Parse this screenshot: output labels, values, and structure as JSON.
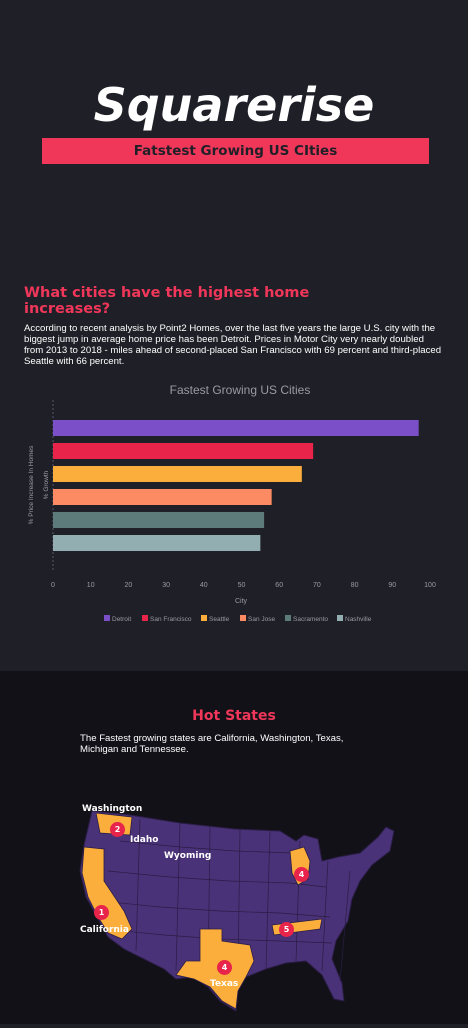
{
  "header": {
    "title": "Squarerise",
    "subtitle": "Fatstest Growing US CIties"
  },
  "intro": {
    "heading": "What cities have the highest home increases?",
    "body": "According to recent analysis by Point2 Homes, over the last five years the large U.S. city with the biggest jump in average home price has been Detroit. Prices in Motor City very nearly doubled from 2013 to 2018 - miles ahead of second-placed San Francisco with 69 percent and third-placed Seattle with 66 percent."
  },
  "chart_data": {
    "type": "bar",
    "orientation": "horizontal",
    "title": "Fastest Growing US Cities",
    "xlabel": "City",
    "ylabel": "% Price Increase In Homes",
    "ylabel_inner": "% Growth",
    "xlim": [
      0,
      100
    ],
    "xticks": [
      "0",
      "10",
      "20",
      "30",
      "40",
      "50",
      "60",
      "70",
      "80",
      "90",
      "100"
    ],
    "legend_position": "bottom",
    "categories": [
      "Detroit",
      "San Francisco",
      "Seattle",
      "San Jose",
      "Sacramento",
      "Nashville"
    ],
    "values": [
      97,
      69,
      66,
      58,
      56,
      55
    ],
    "colors": [
      "#7b4fc7",
      "#e8244b",
      "#fbae3c",
      "#fc8a62",
      "#5d7b7b",
      "#93aeb1"
    ],
    "grid": false
  },
  "states": {
    "heading": "Hot States",
    "body": "The Fastest growing states are California, Washington, Texas, Michigan and Tennessee.",
    "labels": {
      "washington": "Washington",
      "idaho": "Idaho",
      "wyoming": "Wyoming",
      "california": "California",
      "texas": "Texas"
    },
    "pins": {
      "california": "1",
      "washington": "2",
      "texas": "4",
      "michigan": "4",
      "tennessee": "5"
    },
    "colors": {
      "base": "#4a3278",
      "highlight": "#fbae3c",
      "pin": "#e8244b"
    }
  }
}
